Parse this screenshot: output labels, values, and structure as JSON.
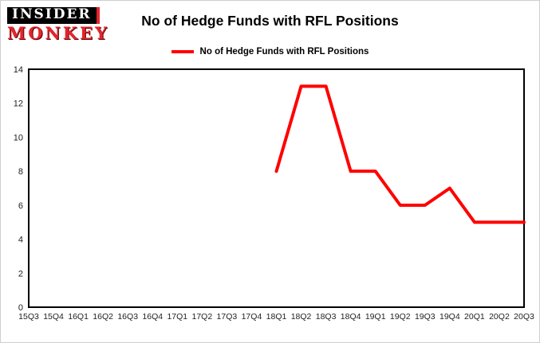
{
  "logo": {
    "line1": "INSIDER",
    "line2": "MONKEY"
  },
  "header": {
    "title": "No of Hedge Funds with RFL Positions"
  },
  "legend": {
    "label": "No of Hedge Funds with RFL Positions",
    "color": "#ff0000"
  },
  "chart_data": {
    "type": "line",
    "title": "No of Hedge Funds with RFL Positions",
    "categories": [
      "15Q3",
      "15Q4",
      "16Q1",
      "16Q2",
      "16Q3",
      "16Q4",
      "17Q1",
      "17Q2",
      "17Q3",
      "17Q4",
      "18Q1",
      "18Q2",
      "18Q3",
      "18Q4",
      "19Q1",
      "19Q2",
      "19Q3",
      "19Q4",
      "20Q1",
      "20Q2",
      "20Q3"
    ],
    "series": [
      {
        "name": "No of Hedge Funds with RFL Positions",
        "color": "#ff0000",
        "values": [
          null,
          null,
          null,
          null,
          null,
          null,
          null,
          null,
          null,
          null,
          8,
          13,
          13,
          8,
          8,
          6,
          6,
          7,
          5,
          5,
          5
        ]
      }
    ],
    "ylim": [
      0,
      14
    ],
    "yticks": [
      0,
      2,
      4,
      6,
      8,
      10,
      12,
      14
    ],
    "grid": false,
    "legend_position": "top",
    "axis_color": "#000000",
    "tick_label_color": "#222222"
  }
}
